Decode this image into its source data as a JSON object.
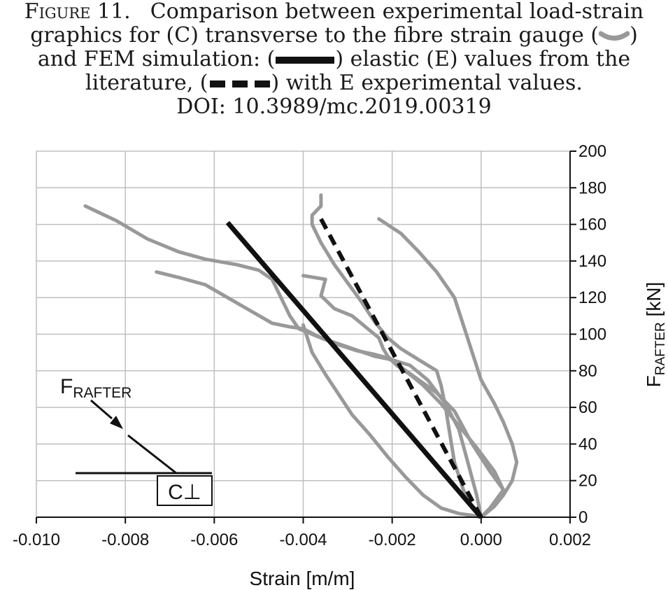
{
  "caption": {
    "figure_label": "Figure 11.",
    "line1": "Comparison between experimental load-strain",
    "line2a": "graphics for (C) transverse to the fibre strain gauge (",
    "line2b": ")",
    "line3a": "and FEM simulation: (",
    "line3b": ") elastic (E) values from the",
    "line4a": "literature, (",
    "line4b": ") with E experimental values.",
    "line5": "DOI: 10.3989/mc.2019.00319"
  },
  "colors": {
    "experimental": "#999999",
    "fem": "#111111",
    "grid": "#bfbfbf"
  },
  "chart_data": {
    "type": "line",
    "xlabel": "Strain [m/m]",
    "ylabel_main": "F",
    "ylabel_sub": "RAFTER",
    "ylabel_unit": " [kN]",
    "xlim": [
      -0.01,
      0.002
    ],
    "ylim": [
      0,
      200
    ],
    "xticks": [
      -0.01,
      -0.008,
      -0.006,
      -0.004,
      -0.002,
      0.0,
      0.002
    ],
    "xtick_labels": [
      "-0.010",
      "-0.008",
      "-0.006",
      "-0.004",
      "-0.002",
      "0.000",
      "0.002"
    ],
    "yticks": [
      0,
      20,
      40,
      60,
      80,
      100,
      120,
      140,
      160,
      180,
      200
    ],
    "ytick_labels": [
      "0",
      "20",
      "40",
      "60",
      "80",
      "100",
      "120",
      "140",
      "160",
      "180",
      "200"
    ],
    "y_axis_side": "right",
    "grid": true,
    "series": [
      {
        "style": "experimental-gray",
        "points": [
          [
            -0.0089,
            170
          ],
          [
            -0.0082,
            162
          ],
          [
            -0.0075,
            152
          ],
          [
            -0.0068,
            145
          ],
          [
            -0.0062,
            141
          ],
          [
            -0.0055,
            138
          ],
          [
            -0.005,
            135
          ],
          [
            -0.0047,
            130
          ],
          [
            -0.0045,
            120
          ],
          [
            -0.0043,
            110
          ],
          [
            -0.0041,
            103
          ],
          [
            -0.0038,
            100
          ],
          [
            -0.0033,
            95
          ],
          [
            -0.0028,
            91
          ],
          [
            -0.0024,
            89
          ],
          [
            -0.0021,
            87
          ],
          [
            -0.0018,
            82
          ],
          [
            -0.0014,
            75
          ],
          [
            -0.001,
            68
          ],
          [
            -0.0006,
            58
          ],
          [
            -0.0002,
            40
          ],
          [
            0.0002,
            25
          ],
          [
            0.0005,
            15
          ],
          [
            0.0002,
            5
          ],
          [
            0.0,
            0
          ]
        ]
      },
      {
        "style": "experimental-gray",
        "points": [
          [
            -0.0073,
            134
          ],
          [
            -0.0068,
            131
          ],
          [
            -0.0062,
            127
          ],
          [
            -0.0057,
            120
          ],
          [
            -0.0052,
            113
          ],
          [
            -0.0047,
            106
          ],
          [
            -0.0043,
            104
          ],
          [
            -0.004,
            103
          ],
          [
            -0.0036,
            98
          ],
          [
            -0.003,
            93
          ],
          [
            -0.0024,
            88
          ],
          [
            -0.002,
            86
          ],
          [
            -0.0016,
            83
          ],
          [
            -0.0012,
            75
          ],
          [
            -0.0008,
            62
          ],
          [
            -0.0005,
            48
          ],
          [
            -0.0003,
            30
          ],
          [
            -0.0001,
            12
          ],
          [
            0.0,
            0
          ]
        ]
      },
      {
        "style": "experimental-gray",
        "points": [
          [
            -0.004,
            105
          ],
          [
            -0.0038,
            90
          ],
          [
            -0.0035,
            78
          ],
          [
            -0.0032,
            67
          ],
          [
            -0.0029,
            56
          ],
          [
            -0.0025,
            45
          ],
          [
            -0.0021,
            33
          ],
          [
            -0.0017,
            22
          ],
          [
            -0.0013,
            12
          ],
          [
            -0.0009,
            5
          ],
          [
            -0.0005,
            2
          ],
          [
            -0.0002,
            1
          ],
          [
            0.0,
            0
          ]
        ]
      },
      {
        "style": "experimental-gray",
        "points": [
          [
            -0.004,
            132
          ],
          [
            -0.0035,
            130
          ],
          [
            -0.0036,
            121
          ],
          [
            -0.0033,
            114
          ],
          [
            -0.0029,
            110
          ],
          [
            -0.0027,
            106
          ],
          [
            -0.0025,
            102
          ],
          [
            -0.0023,
            98
          ],
          [
            -0.0022,
            92
          ],
          [
            -0.0021,
            88
          ],
          [
            -0.0019,
            83
          ],
          [
            -0.0016,
            78
          ],
          [
            -0.0013,
            72
          ],
          [
            -0.0009,
            62
          ],
          [
            -0.0005,
            50
          ],
          [
            -0.0001,
            38
          ],
          [
            0.0003,
            25
          ],
          [
            0.0005,
            15
          ],
          [
            0.0003,
            6
          ],
          [
            0.0,
            0
          ]
        ]
      },
      {
        "style": "experimental-gray",
        "points": [
          [
            -0.0036,
            176
          ],
          [
            -0.0036,
            170
          ],
          [
            -0.0038,
            165
          ],
          [
            -0.0038,
            160
          ],
          [
            -0.0036,
            150
          ],
          [
            -0.0033,
            138
          ],
          [
            -0.003,
            128
          ],
          [
            -0.0027,
            118
          ],
          [
            -0.0024,
            107
          ],
          [
            -0.0021,
            98
          ],
          [
            -0.0018,
            92
          ],
          [
            -0.0014,
            86
          ],
          [
            -0.001,
            80
          ],
          [
            -0.0009,
            72
          ],
          [
            -0.0008,
            60
          ],
          [
            -0.0007,
            45
          ],
          [
            -0.0006,
            30
          ],
          [
            -0.0004,
            15
          ],
          [
            -0.0002,
            5
          ],
          [
            0.0,
            0
          ]
        ]
      },
      {
        "style": "experimental-gray",
        "points": [
          [
            -0.0023,
            163
          ],
          [
            -0.0018,
            155
          ],
          [
            -0.0014,
            145
          ],
          [
            -0.001,
            134
          ],
          [
            -0.0006,
            120
          ],
          [
            -0.0004,
            105
          ],
          [
            -0.0002,
            90
          ],
          [
            0.0,
            75
          ],
          [
            0.0003,
            62
          ],
          [
            0.0005,
            52
          ],
          [
            0.0007,
            40
          ],
          [
            0.0008,
            30
          ],
          [
            0.0007,
            20
          ],
          [
            0.0005,
            12
          ],
          [
            0.0003,
            6
          ],
          [
            0.0,
            0
          ]
        ]
      },
      {
        "style": "fem-solid",
        "points": [
          [
            -0.0057,
            161
          ],
          [
            0.0,
            0
          ]
        ]
      },
      {
        "style": "fem-dashed",
        "points": [
          [
            -0.0036,
            163
          ],
          [
            0.0,
            0
          ]
        ]
      }
    ]
  },
  "inset": {
    "force_label": "F",
    "force_sub": "RAFTER",
    "section_label": "C⊥"
  }
}
